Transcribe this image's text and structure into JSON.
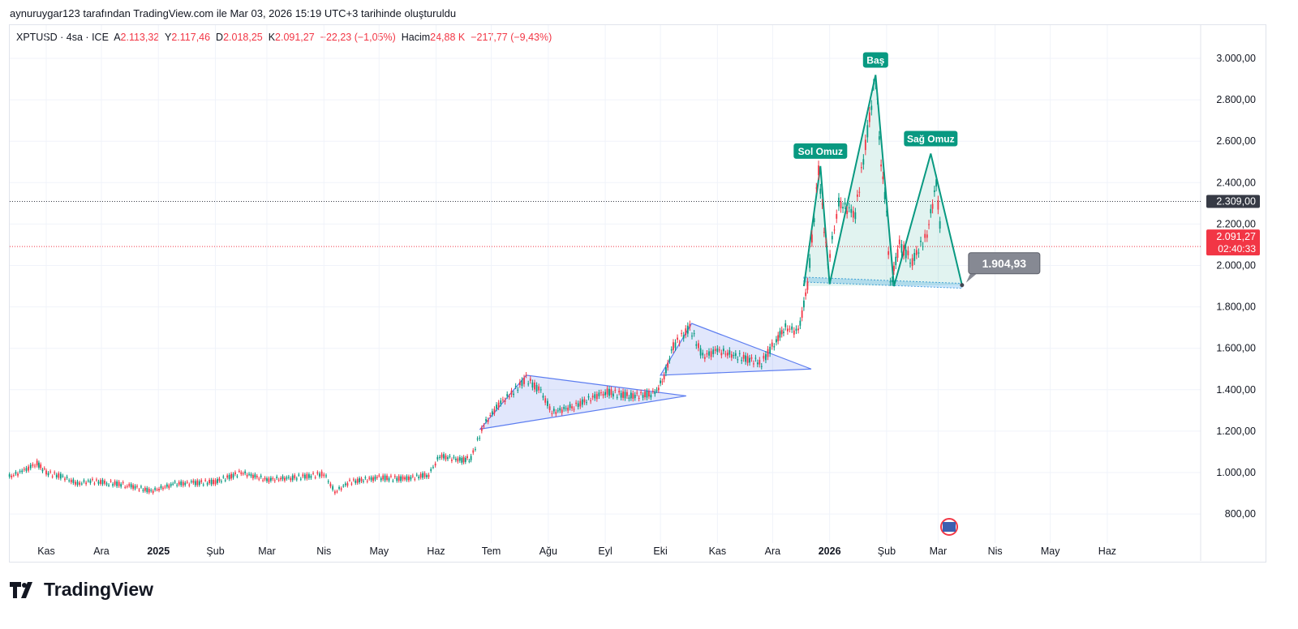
{
  "caption": "aynuruygar123 tarafından TradingView.com ile Mar 03, 2026 15:19 UTC+3 tarihinde oluşturuldu",
  "legend": {
    "symbol": "XPTUSD · 4sa · ICE",
    "o_label": "A",
    "o": "2.113,32",
    "h_label": "Y",
    "h": "2.117,46",
    "l_label": "D",
    "l": "2.018,25",
    "c_label": "K",
    "c": "2.091,27",
    "change": "−22,23 (−1,05%)",
    "vol_label": "Hacim",
    "vol": "24,88 K",
    "vol_change": "−217,77 (−9,43%)"
  },
  "brand": "TradingView",
  "colors": {
    "up": "#089981",
    "down": "#f23645",
    "pattern": "#089981",
    "triangle": "#5b7cf0",
    "current": "#f23645"
  },
  "chart_data": {
    "type": "line",
    "title": "XPTUSD 4sa",
    "ylim": [
      650,
      3100
    ],
    "y_ticks": [
      800,
      1000,
      1200,
      1400,
      1600,
      1800,
      2000,
      2200,
      2400,
      2600,
      2800,
      3000
    ],
    "y_tick_labels": [
      "800,00",
      "1.000,00",
      "1.200,00",
      "1.400,00",
      "1.600,00",
      "1.800,00",
      "2.000,00",
      "2.200,00",
      "2.400,00",
      "2.600,00",
      "2.800,00",
      "3.000,00"
    ],
    "x_ticks": [
      {
        "d": "2024-11-01",
        "l": "Kas"
      },
      {
        "d": "2024-12-01",
        "l": "Ara"
      },
      {
        "d": "2025-01-01",
        "l": "2025",
        "bold": true
      },
      {
        "d": "2025-02-01",
        "l": "Şub"
      },
      {
        "d": "2025-03-01",
        "l": "Mar"
      },
      {
        "d": "2025-04-01",
        "l": "Nis"
      },
      {
        "d": "2025-05-01",
        "l": "May"
      },
      {
        "d": "2025-06-01",
        "l": "Haz"
      },
      {
        "d": "2025-07-01",
        "l": "Tem"
      },
      {
        "d": "2025-08-01",
        "l": "Ağu"
      },
      {
        "d": "2025-09-01",
        "l": "Eyl"
      },
      {
        "d": "2025-10-01",
        "l": "Eki"
      },
      {
        "d": "2025-11-01",
        "l": "Kas"
      },
      {
        "d": "2025-12-01",
        "l": "Ara"
      },
      {
        "d": "2026-01-01",
        "l": "2026",
        "bold": true
      },
      {
        "d": "2026-02-01",
        "l": "Şub"
      },
      {
        "d": "2026-03-01",
        "l": "Mar"
      },
      {
        "d": "2026-04-01",
        "l": "Nis"
      },
      {
        "d": "2026-05-01",
        "l": "May"
      },
      {
        "d": "2026-06-01",
        "l": "Haz"
      }
    ],
    "series": [
      {
        "name": "XPTUSD",
        "points": [
          [
            "2024-10-12",
            980
          ],
          [
            "2024-10-20",
            1010
          ],
          [
            "2024-10-27",
            1045
          ],
          [
            "2024-11-01",
            1000
          ],
          [
            "2024-11-10",
            980
          ],
          [
            "2024-11-18",
            945
          ],
          [
            "2024-11-25",
            960
          ],
          [
            "2024-12-05",
            950
          ],
          [
            "2024-12-15",
            940
          ],
          [
            "2024-12-28",
            910
          ],
          [
            "2025-01-10",
            945
          ],
          [
            "2025-01-20",
            950
          ],
          [
            "2025-02-01",
            955
          ],
          [
            "2025-02-15",
            1000
          ],
          [
            "2025-03-01",
            965
          ],
          [
            "2025-03-15",
            975
          ],
          [
            "2025-03-25",
            985
          ],
          [
            "2025-04-01",
            995
          ],
          [
            "2025-04-07",
            905
          ],
          [
            "2025-04-15",
            955
          ],
          [
            "2025-05-01",
            975
          ],
          [
            "2025-05-15",
            970
          ],
          [
            "2025-05-28",
            990
          ],
          [
            "2025-06-03",
            1080
          ],
          [
            "2025-06-15",
            1060
          ],
          [
            "2025-06-20",
            1070
          ],
          [
            "2025-06-27",
            1230
          ],
          [
            "2025-07-05",
            1330
          ],
          [
            "2025-07-12",
            1380
          ],
          [
            "2025-07-20",
            1455
          ],
          [
            "2025-07-28",
            1390
          ],
          [
            "2025-08-03",
            1290
          ],
          [
            "2025-08-15",
            1320
          ],
          [
            "2025-09-01",
            1390
          ],
          [
            "2025-09-15",
            1370
          ],
          [
            "2025-09-28",
            1380
          ],
          [
            "2025-10-03",
            1460
          ],
          [
            "2025-10-08",
            1610
          ],
          [
            "2025-10-17",
            1700
          ],
          [
            "2025-10-24",
            1560
          ],
          [
            "2025-11-01",
            1590
          ],
          [
            "2025-11-12",
            1560
          ],
          [
            "2025-11-25",
            1530
          ],
          [
            "2025-12-03",
            1640
          ],
          [
            "2025-12-08",
            1700
          ],
          [
            "2025-12-15",
            1680
          ],
          [
            "2025-12-20",
            1900
          ],
          [
            "2025-12-26",
            2460
          ],
          [
            "2025-12-31",
            2000
          ],
          [
            "2026-01-06",
            2300
          ],
          [
            "2026-01-15",
            2250
          ],
          [
            "2026-01-26",
            2910
          ],
          [
            "2026-01-29",
            2500
          ],
          [
            "2026-02-01",
            2250
          ],
          [
            "2026-02-03",
            1900
          ],
          [
            "2026-02-08",
            2100
          ],
          [
            "2026-02-15",
            2020
          ],
          [
            "2026-02-23",
            2150
          ],
          [
            "2026-02-28",
            2400
          ],
          [
            "2026-03-03",
            2091
          ]
        ]
      }
    ],
    "h_lines": [
      {
        "price": 2309,
        "label": "2.309,00",
        "color": "#363a45",
        "dotted": true
      },
      {
        "price": 2091.27,
        "label": "2.091,27",
        "sub": "02:40:33",
        "color": "#f23645",
        "dotted": true
      }
    ],
    "triangles": [
      {
        "pts": [
          [
            "2025-06-25",
            1210
          ],
          [
            "2025-07-20",
            1470
          ],
          [
            "2025-10-15",
            1370
          ]
        ]
      },
      {
        "pts": [
          [
            "2025-10-01",
            1470
          ],
          [
            "2025-10-18",
            1720
          ],
          [
            "2025-12-22",
            1500
          ]
        ]
      }
    ],
    "head_shoulders": {
      "pts": [
        [
          "2025-12-18",
          1900
        ],
        [
          "2025-12-27",
          2480
        ],
        [
          "2026-01-01",
          1910
        ],
        [
          "2026-01-26",
          2920
        ],
        [
          "2026-02-05",
          1900
        ],
        [
          "2026-02-25",
          2540
        ],
        [
          "2026-03-14",
          1905
        ]
      ],
      "labels": [
        {
          "d": "2025-12-27",
          "p": 2480,
          "text": "Sol Omuz"
        },
        {
          "d": "2026-01-26",
          "p": 2920,
          "text": "Baş"
        },
        {
          "d": "2026-02-25",
          "p": 2540,
          "text": "Sağ Omuz"
        }
      ]
    },
    "neckline": {
      "from": [
        "2025-12-18",
        1920
      ],
      "to": [
        "2026-03-14",
        1890
      ]
    },
    "price_label": {
      "d": "2026-03-14",
      "p": 1905,
      "text": "1.904,93"
    }
  }
}
